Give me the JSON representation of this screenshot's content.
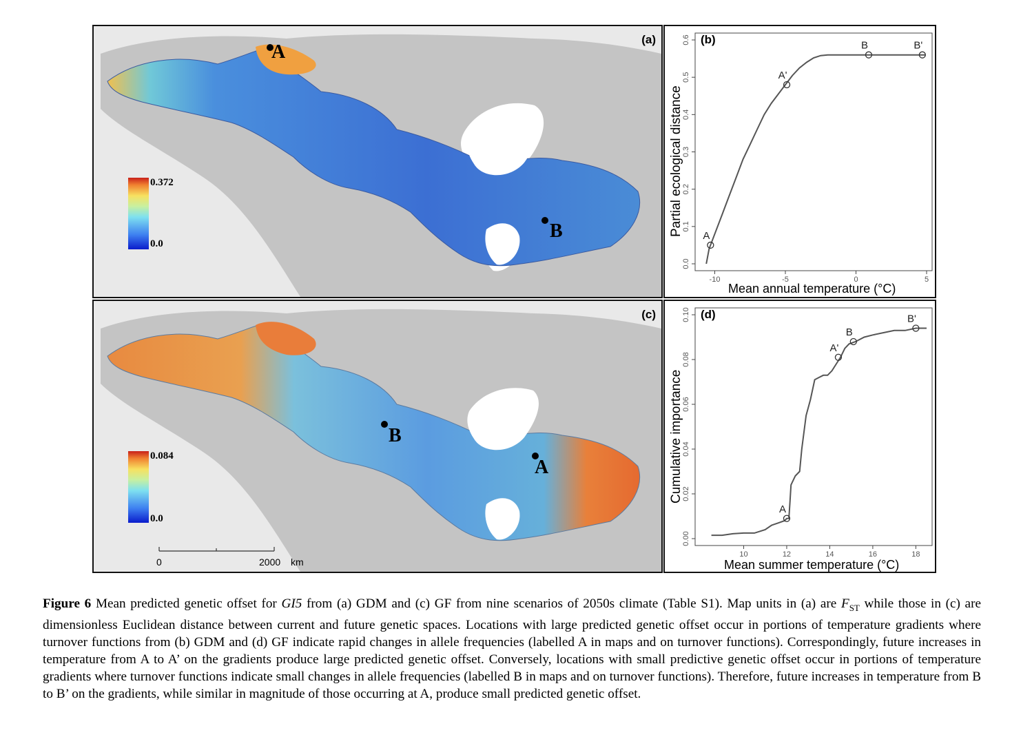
{
  "panels": {
    "a": {
      "label": "(a)",
      "colorbar": {
        "max": "0.372",
        "min": "0.0"
      },
      "points": [
        {
          "label": "A"
        },
        {
          "label": "B"
        }
      ]
    },
    "b": {
      "label": "(b)"
    },
    "c": {
      "label": "(c)",
      "colorbar": {
        "max": "0.084",
        "min": "0.0"
      },
      "points": [
        {
          "label": "B"
        },
        {
          "label": "A"
        }
      ],
      "scalebar": {
        "start": "0",
        "end": "2000",
        "unit": "km"
      }
    },
    "d": {
      "label": "(d)"
    }
  },
  "chart_data": [
    {
      "type": "line",
      "panel": "(b)",
      "xlabel": "Mean annual temperature (°C)",
      "ylabel": "Partial ecological distance",
      "xlim": [
        -11,
        5
      ],
      "ylim": [
        0,
        0.6
      ],
      "xticks": [
        -10,
        -5,
        0,
        5
      ],
      "yticks": [
        0.0,
        0.1,
        0.2,
        0.3,
        0.4,
        0.5,
        0.6
      ],
      "series": [
        {
          "x": [
            -10.6,
            -10.4,
            -10.0,
            -9.5,
            -9.0,
            -8.5,
            -8.0,
            -7.5,
            -7.0,
            -6.5,
            -6.0,
            -5.5,
            -5.0,
            -4.5,
            -4.0,
            -3.5,
            -3.0,
            -2.5,
            -2.0,
            -1.5,
            -1.0,
            0.0,
            1.0,
            2.0,
            3.0,
            4.0,
            4.9
          ],
          "y": [
            0.0,
            0.04,
            0.08,
            0.13,
            0.18,
            0.23,
            0.28,
            0.32,
            0.36,
            0.4,
            0.43,
            0.455,
            0.48,
            0.505,
            0.525,
            0.54,
            0.552,
            0.558,
            0.56,
            0.56,
            0.56,
            0.56,
            0.56,
            0.56,
            0.56,
            0.56,
            0.56
          ]
        }
      ],
      "points": [
        {
          "label": "A",
          "x": -10.3,
          "y": 0.05
        },
        {
          "label": "A'",
          "x": -4.9,
          "y": 0.48
        },
        {
          "label": "B",
          "x": 0.9,
          "y": 0.56
        },
        {
          "label": "B'",
          "x": 4.7,
          "y": 0.56
        }
      ]
    },
    {
      "type": "line",
      "panel": "(d)",
      "xlabel": "Mean summer temperature (°C)",
      "ylabel": "Cumulative importance",
      "xlim": [
        8,
        18.5
      ],
      "ylim": [
        0,
        0.1
      ],
      "xticks": [
        10,
        12,
        14,
        16,
        18
      ],
      "yticks": [
        0.0,
        0.02,
        0.04,
        0.06,
        0.08,
        0.1
      ],
      "series": [
        {
          "x": [
            8.5,
            9.0,
            9.5,
            10.0,
            10.5,
            11.0,
            11.3,
            11.6,
            11.9,
            12.0,
            12.1,
            12.15,
            12.2,
            12.4,
            12.6,
            12.7,
            12.9,
            13.1,
            13.3,
            13.5,
            13.7,
            13.9,
            14.1,
            14.3,
            14.5,
            14.7,
            14.9,
            15.2,
            15.6,
            16.0,
            16.5,
            17.0,
            17.5,
            18.0,
            18.3,
            18.5
          ],
          "y": [
            0.0015,
            0.0015,
            0.0022,
            0.0025,
            0.0025,
            0.004,
            0.006,
            0.007,
            0.008,
            0.009,
            0.009,
            0.016,
            0.024,
            0.028,
            0.03,
            0.04,
            0.055,
            0.062,
            0.071,
            0.072,
            0.073,
            0.073,
            0.075,
            0.078,
            0.081,
            0.085,
            0.087,
            0.088,
            0.09,
            0.091,
            0.092,
            0.093,
            0.093,
            0.094,
            0.094,
            0.094
          ]
        }
      ],
      "points": [
        {
          "label": "A",
          "x": 12.0,
          "y": 0.009
        },
        {
          "label": "A'",
          "x": 14.4,
          "y": 0.081
        },
        {
          "label": "B",
          "x": 15.1,
          "y": 0.088
        },
        {
          "label": "B'",
          "x": 18.0,
          "y": 0.094
        }
      ]
    }
  ],
  "caption": {
    "figure_label": "Figure 6",
    "text_1": " Mean predicted genetic offset for ",
    "gene": "GI5",
    "text_2": " from (a) GDM and (c) GF from nine scenarios of 2050s climate (Table S1). Map units in (a) are ",
    "fst": "F",
    "fst_sub": "ST",
    "text_3": " while those in (c) are dimensionless Euclidean distance between current and future genetic spaces. Locations with large predicted genetic offset occur in portions of temperature gradients where turnover functions from (b) GDM and (d) GF indicate rapid changes in allele frequencies (labelled A in maps and on turnover functions). Correspondingly, future increases in temperature from A to A’ on the gradients produce large predicted genetic offset. Conversely, locations with small predictive genetic offset occur in portions of temperature gradients where turnover functions indicate small changes in allele frequencies (labelled B in maps and on turnover functions). Therefore, future increases in temperature from B to B’ on the gradients, while similar in magnitude of those occurring at A, produce small predicted genetic offset."
  },
  "colors": {
    "land": "#c2c2c2",
    "water": "#ffffff",
    "offset_low": "#2c5fcf",
    "offset_high": "#e8532a",
    "curve": "#555555"
  }
}
